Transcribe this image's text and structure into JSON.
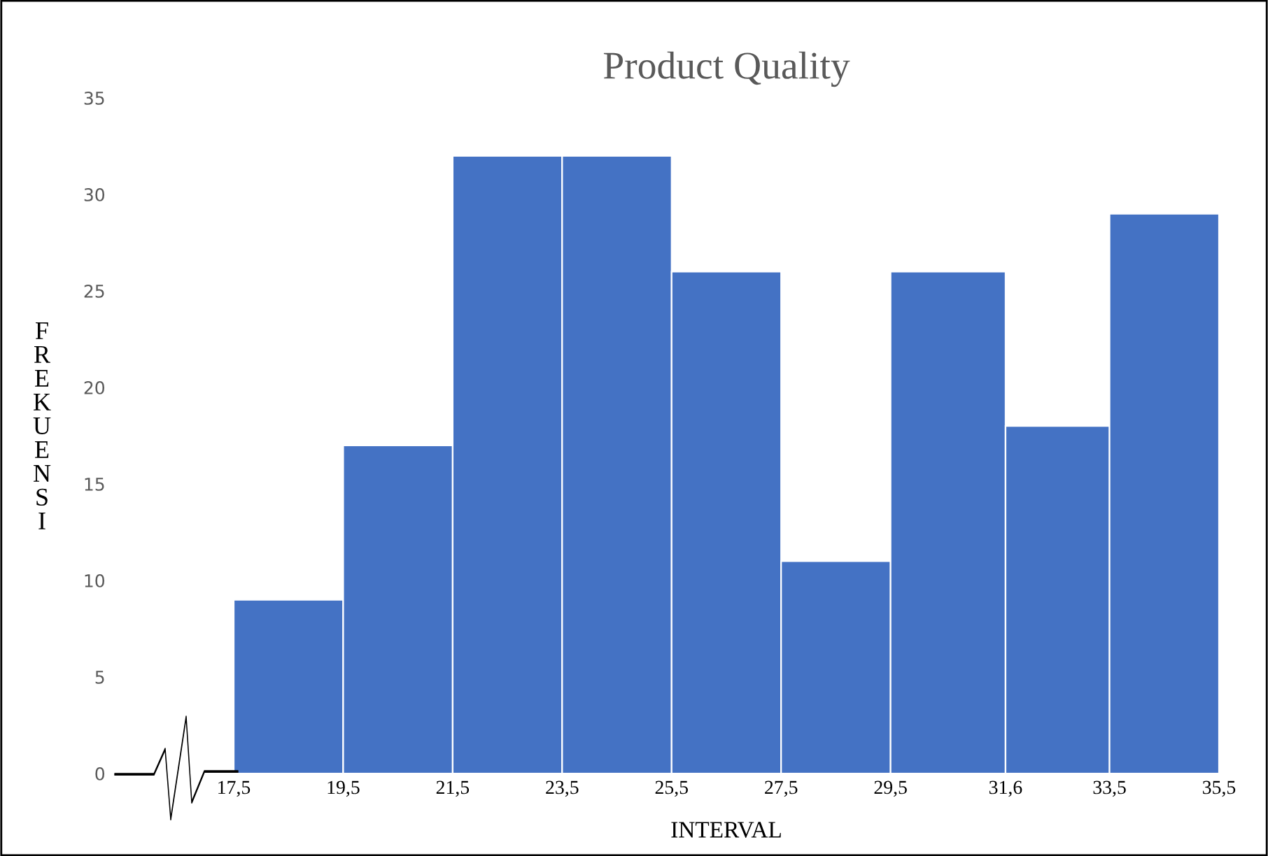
{
  "chart_data": {
    "type": "histogram",
    "title": "Product Quality",
    "xlabel": "INTERVAL",
    "ylabel": "FREKUENSI",
    "bins": [
      17.5,
      19.5,
      21.5,
      23.5,
      25.5,
      27.5,
      29.5,
      31.6,
      33.5,
      35.5
    ],
    "values": [
      9,
      17,
      32,
      32,
      26,
      11,
      26,
      18,
      29
    ],
    "color": "#4472c4",
    "xlim": [
      17.5,
      35.5
    ],
    "xticks": [
      {
        "value": 17.5,
        "label": "17,5"
      },
      {
        "value": 19.5,
        "label": "19,5"
      },
      {
        "value": 21.5,
        "label": "21,5"
      },
      {
        "value": 23.5,
        "label": "23,5"
      },
      {
        "value": 25.5,
        "label": "25,5"
      },
      {
        "value": 27.5,
        "label": "27,5"
      },
      {
        "value": 29.5,
        "label": "29,5"
      },
      {
        "value": 31.6,
        "label": "31,6"
      },
      {
        "value": 33.5,
        "label": "33,5"
      },
      {
        "value": 35.5,
        "label": "35,5"
      }
    ],
    "ylim": [
      0,
      35
    ],
    "yticks": [
      0,
      5,
      10,
      15,
      20,
      25,
      30,
      35
    ],
    "grid": false
  }
}
